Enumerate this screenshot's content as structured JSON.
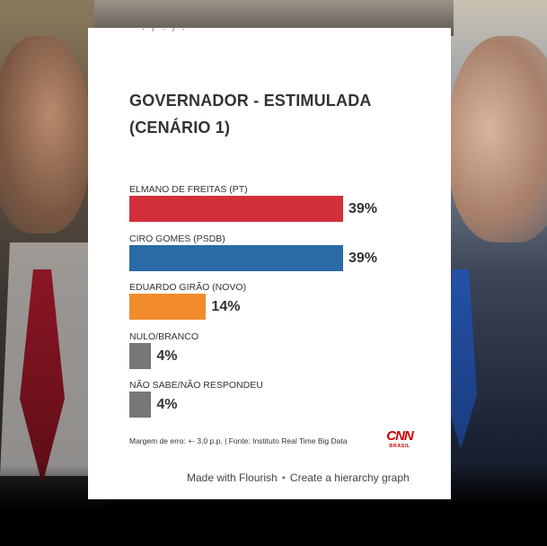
{
  "card": {
    "top_strip_text": "· / · / ·",
    "title_line1": "GOVERNADOR - ESTIMULADA",
    "title_line2": "(CENÁRIO 1)",
    "footer_note": "Margem de erro: +- 3,0 p.p. | Fonte: Instituto Real Time Big Data",
    "logo_text": "CNN",
    "logo_sub": "BRASIL",
    "made_with": "Made with Flourish",
    "separator": "•",
    "create_link": "Create a hierarchy graph"
  },
  "chart_data": {
    "type": "bar",
    "orientation": "horizontal",
    "title": "GOVERNADOR - ESTIMULADA (CENÁRIO 1)",
    "categories": [
      "ELMANO DE FREITAS (PT)",
      "CIRO GOMES (PSDB)",
      "EDUARDO GIRÃO (NOVO)",
      "NULO/BRANCO",
      "NÃO SABE/NÃO RESPONDEU"
    ],
    "values": [
      39,
      39,
      14,
      4,
      4
    ],
    "value_labels": [
      "39%",
      "39%",
      "14%",
      "4%",
      "4%"
    ],
    "colors": [
      "#d32f3b",
      "#2a6aa6",
      "#f28a2e",
      "#777777",
      "#777777"
    ],
    "unit": "%",
    "xlim": [
      0,
      39
    ],
    "grid": false,
    "legend": "none"
  }
}
